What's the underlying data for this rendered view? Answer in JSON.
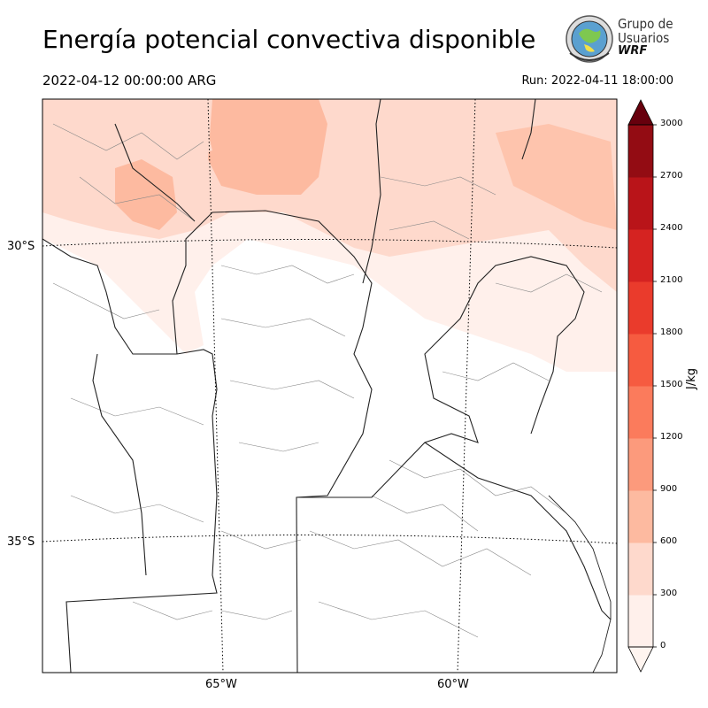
{
  "header": {
    "title": "Energía potencial convectiva disponible",
    "valid_time": "2022-04-12 00:00:00 ARG",
    "run_time": "Run: 2022-04-11 18:00:00"
  },
  "logo": {
    "line1": "Grupo de",
    "line2": "Usuarios",
    "line3": "WRF"
  },
  "map": {
    "lat_labels": [
      "30°S",
      "35°S"
    ],
    "lon_labels": [
      "65°W",
      "60°W"
    ]
  },
  "colorbar": {
    "unit": "J/kg",
    "ticks": [
      "0",
      "300",
      "600",
      "900",
      "1200",
      "1500",
      "1800",
      "2100",
      "2400",
      "2700",
      "3000"
    ],
    "colors": [
      "#fff0eb",
      "#fed9cc",
      "#fdbaa0",
      "#fc9a7c",
      "#fb7b5c",
      "#f65b40",
      "#ea3b2c",
      "#d52321",
      "#b91419",
      "#930c13",
      "#6b0a12"
    ],
    "over_color": "#67000d",
    "under_color": "#fff5f0"
  }
}
